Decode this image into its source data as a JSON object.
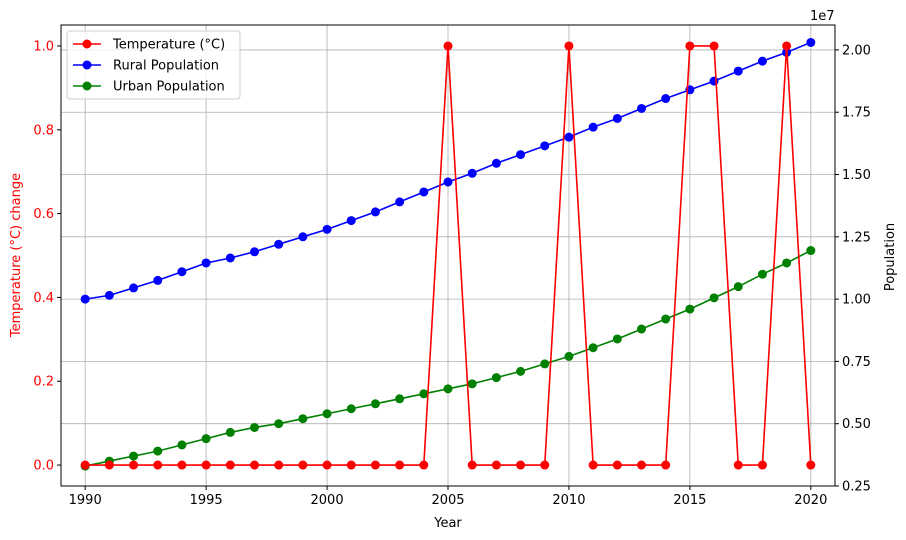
{
  "chart_data": {
    "type": "line",
    "x": [
      1990,
      1991,
      1992,
      1993,
      1994,
      1995,
      1996,
      1997,
      1998,
      1999,
      2000,
      2001,
      2002,
      2003,
      2004,
      2005,
      2006,
      2007,
      2008,
      2009,
      2010,
      2011,
      2012,
      2013,
      2014,
      2015,
      2016,
      2017,
      2018,
      2019,
      2020
    ],
    "xlabel": "Year",
    "xlim": [
      1989,
      2021
    ],
    "x_ticks": [
      1990,
      1995,
      2000,
      2005,
      2010,
      2015,
      2020
    ],
    "x_tick_labels": [
      "1990",
      "1995",
      "2000",
      "2005",
      "2010",
      "2015",
      "2020"
    ],
    "grid": true,
    "legend_position": "top-left",
    "left_axis": {
      "label": "Temperature (°C) change",
      "color": "#ff0000",
      "ylim": [
        -0.05,
        1.05
      ],
      "ticks": [
        0.0,
        0.2,
        0.4,
        0.6,
        0.8,
        1.0
      ],
      "tick_labels": [
        "0.0",
        "0.2",
        "0.4",
        "0.6",
        "0.8",
        "1.0"
      ]
    },
    "right_axis": {
      "label": "Population",
      "color": "#000000",
      "offset_text": "1e7",
      "ylim": [
        2500000,
        21000000
      ],
      "ticks": [
        2500000,
        5000000,
        7500000,
        10000000,
        12500000,
        15000000,
        17500000,
        20000000
      ],
      "tick_labels": [
        "0.25",
        "0.50",
        "0.75",
        "1.00",
        "1.25",
        "1.50",
        "1.75",
        "2.00"
      ]
    },
    "series": [
      {
        "name": "Temperature (°C)",
        "color": "#ff0000",
        "axis": "left",
        "values": [
          0,
          0,
          0,
          0,
          0,
          0,
          0,
          0,
          0,
          0,
          0,
          0,
          0,
          0,
          0,
          1,
          0,
          0,
          0,
          0,
          1,
          0,
          0,
          0,
          0,
          1,
          1,
          0,
          0,
          1,
          0
        ]
      },
      {
        "name": "Rural Population",
        "color": "#0000ff",
        "axis": "right",
        "values": [
          10000000,
          10150000,
          10450000,
          10750000,
          11100000,
          11450000,
          11650000,
          11900000,
          12200000,
          12500000,
          12800000,
          13150000,
          13500000,
          13900000,
          14300000,
          14700000,
          15050000,
          15450000,
          15800000,
          16150000,
          16500000,
          16900000,
          17250000,
          17650000,
          18050000,
          18400000,
          18750000,
          19150000,
          19550000,
          19900000,
          20300000
        ]
      },
      {
        "name": "Urban Population",
        "color": "#008000",
        "axis": "right",
        "values": [
          3300000,
          3500000,
          3700000,
          3900000,
          4150000,
          4400000,
          4650000,
          4850000,
          5000000,
          5200000,
          5400000,
          5600000,
          5800000,
          6000000,
          6200000,
          6400000,
          6600000,
          6850000,
          7100000,
          7400000,
          7700000,
          8050000,
          8400000,
          8800000,
          9200000,
          9600000,
          10050000,
          10500000,
          11000000,
          11450000,
          11950000
        ]
      }
    ]
  }
}
